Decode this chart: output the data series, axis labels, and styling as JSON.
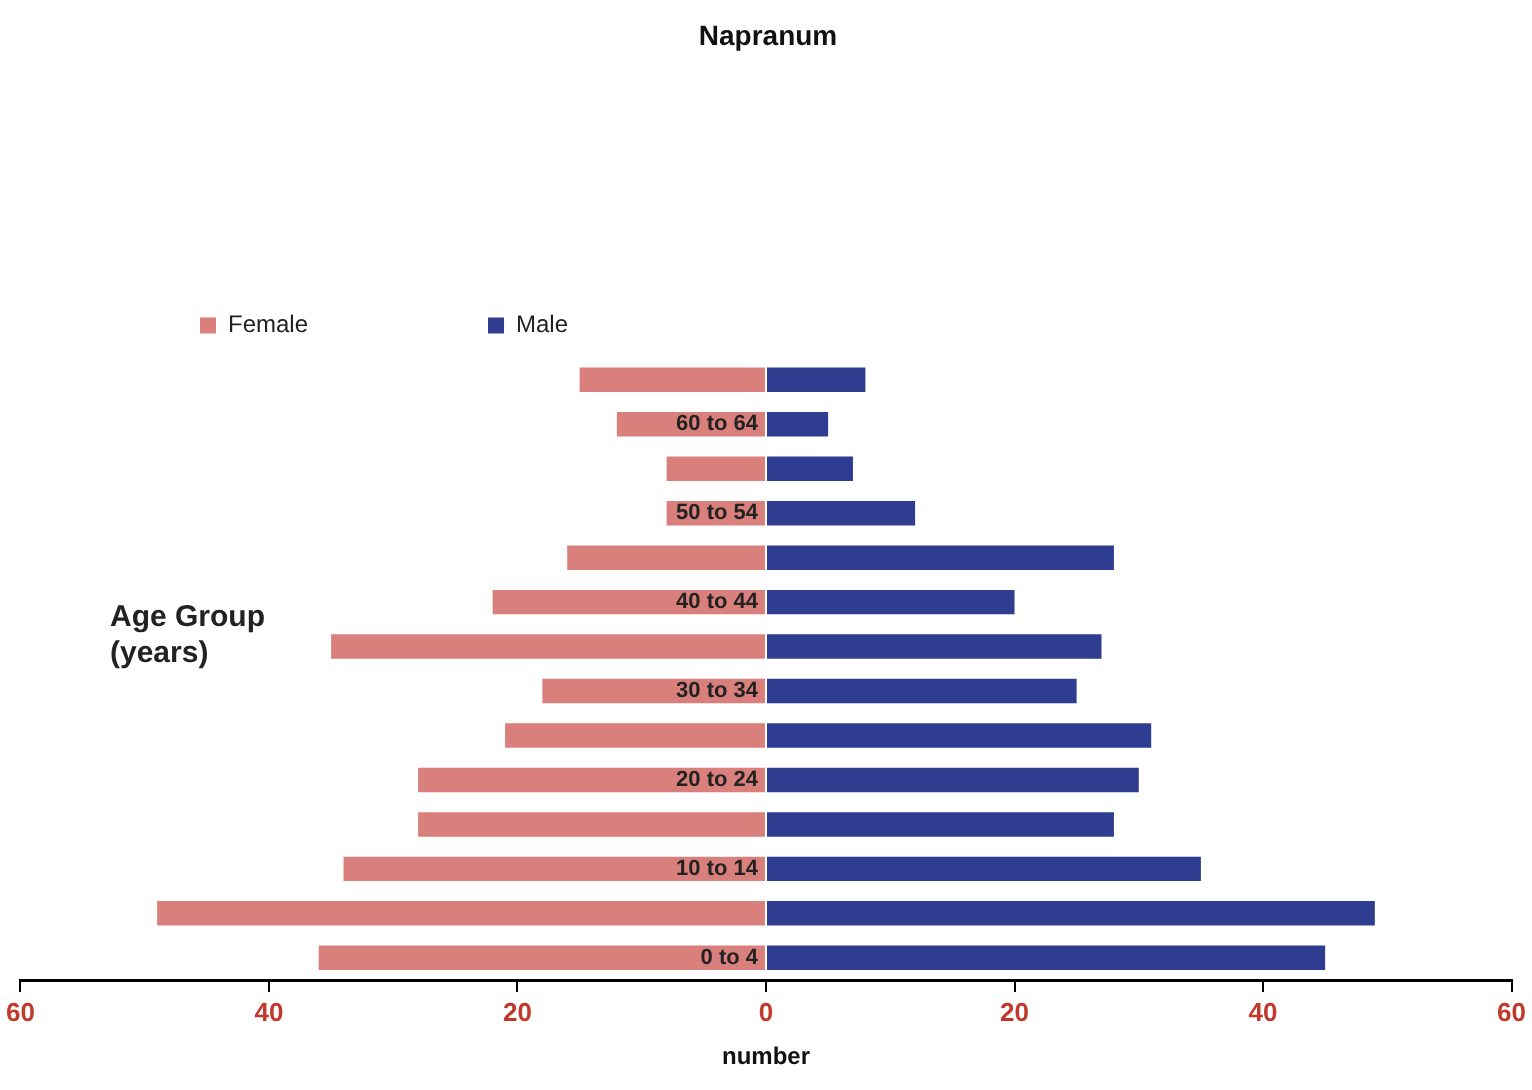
{
  "chart_data": {
    "type": "bar",
    "orientation": "horizontal",
    "stacked": true,
    "title": "Napranum",
    "xlabel": "number",
    "ylabel": "Age Group (years)",
    "categories": [
      null,
      "60 to 64",
      null,
      "50 to 54",
      null,
      "40 to 44",
      null,
      "30 to 34",
      null,
      "20 to 24",
      null,
      "10 to 14",
      null,
      "0 to 4"
    ],
    "series": [
      {
        "name": "Female",
        "color": "#d9807c",
        "values": [
          -15,
          -12,
          -8,
          -8,
          -16,
          -22,
          -35,
          -18,
          -21,
          -28,
          -28,
          -34,
          -49,
          -36
        ]
      },
      {
        "name": "Male",
        "color": "#2e3d90",
        "values": [
          8,
          5,
          7,
          12,
          28,
          20,
          27,
          25,
          31,
          30,
          28,
          35,
          49,
          45
        ]
      }
    ],
    "xlim": [
      -60,
      60
    ],
    "xticks": [
      {
        "value": -60,
        "label": "60"
      },
      {
        "value": -40,
        "label": "40"
      },
      {
        "value": -20,
        "label": "20"
      },
      0,
      20,
      40,
      60
    ],
    "grid": false,
    "legend": "top left"
  }
}
